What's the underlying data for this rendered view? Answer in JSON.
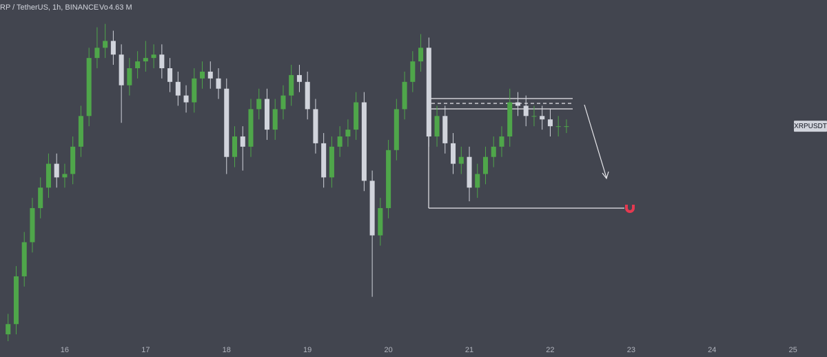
{
  "chart_data": {
    "type": "candlestick",
    "title": "RP / TetherUS, 1h, BINANCE",
    "volume_label": "Vo",
    "volume_value": "4.63 M",
    "symbol": "XRPUSDT",
    "up_color": "#4fa64a",
    "down_color": "#d1d4dc",
    "background": "#42454f",
    "xlim": [
      15.2,
      25.42
    ],
    "xticks": [
      16,
      17,
      18,
      19,
      20,
      21,
      22,
      23,
      24,
      25
    ],
    "ylim": [
      0,
      100
    ],
    "x": [
      15.3,
      15.4,
      15.5,
      15.6,
      15.7,
      15.8,
      15.9,
      16.0,
      16.1,
      16.2,
      16.3,
      16.4,
      16.5,
      16.6,
      16.7,
      16.8,
      16.9,
      17.0,
      17.1,
      17.2,
      17.3,
      17.4,
      17.5,
      17.6,
      17.7,
      17.8,
      17.9,
      18.0,
      18.1,
      18.2,
      18.3,
      18.4,
      18.5,
      18.6,
      18.7,
      18.8,
      18.9,
      19.0,
      19.1,
      19.2,
      19.3,
      19.4,
      19.5,
      19.6,
      19.7,
      19.8,
      19.9,
      20.0,
      20.1,
      20.2,
      20.3,
      20.4,
      20.5,
      20.6,
      20.7,
      20.8,
      20.9,
      21.0,
      21.1,
      21.2,
      21.3,
      21.4,
      21.5,
      21.6,
      21.7,
      21.8,
      21.9,
      22.0,
      22.1,
      22.2
    ],
    "open": [
      2,
      5,
      19,
      29,
      39,
      45,
      52,
      48,
      49,
      57,
      66,
      83,
      86,
      88,
      84,
      75,
      80,
      82,
      83,
      84,
      80,
      76,
      72,
      70,
      77,
      79,
      77,
      74,
      54,
      60,
      57,
      68,
      71,
      62,
      68,
      72,
      78,
      76,
      68,
      58,
      48,
      57,
      60,
      62,
      70,
      47,
      31,
      39,
      56,
      68,
      76,
      82,
      86,
      60,
      66,
      58,
      52,
      54,
      45,
      49,
      54,
      57,
      60,
      70,
      69,
      66,
      66,
      65,
      63,
      63
    ],
    "high": [
      8,
      22,
      32,
      42,
      48,
      55,
      55,
      52,
      60,
      69,
      86,
      92,
      93,
      91,
      87,
      83,
      85,
      88,
      87,
      87,
      83,
      79,
      75,
      80,
      82,
      82,
      80,
      77,
      63,
      63,
      71,
      74,
      74,
      71,
      75,
      81,
      81,
      79,
      71,
      61,
      60,
      63,
      65,
      73,
      73,
      50,
      42,
      59,
      71,
      79,
      85,
      90,
      89,
      69,
      69,
      61,
      57,
      57,
      52,
      57,
      60,
      63,
      74,
      73,
      72,
      69,
      69,
      68,
      66,
      65
    ],
    "low": [
      0,
      2,
      16,
      26,
      36,
      42,
      45,
      45,
      46,
      54,
      63,
      80,
      83,
      81,
      64,
      72,
      77,
      79,
      80,
      77,
      73,
      69,
      67,
      67,
      74,
      74,
      71,
      49,
      51,
      50,
      54,
      65,
      59,
      59,
      65,
      69,
      73,
      65,
      55,
      45,
      45,
      54,
      57,
      59,
      44,
      13,
      28,
      36,
      53,
      65,
      73,
      79,
      57,
      57,
      55,
      49,
      49,
      41,
      42,
      46,
      51,
      54,
      57,
      66,
      63,
      63,
      62,
      60,
      60,
      61
    ],
    "close": [
      5,
      19,
      29,
      39,
      45,
      52,
      48,
      49,
      57,
      66,
      83,
      86,
      88,
      84,
      75,
      80,
      82,
      83,
      84,
      80,
      76,
      72,
      70,
      77,
      79,
      77,
      74,
      54,
      60,
      57,
      68,
      71,
      62,
      68,
      72,
      78,
      76,
      68,
      58,
      48,
      57,
      60,
      62,
      70,
      47,
      31,
      39,
      56,
      68,
      76,
      82,
      86,
      60,
      66,
      58,
      52,
      54,
      45,
      49,
      54,
      57,
      60,
      70,
      69,
      66,
      66,
      65,
      63,
      63,
      63
    ]
  }
}
